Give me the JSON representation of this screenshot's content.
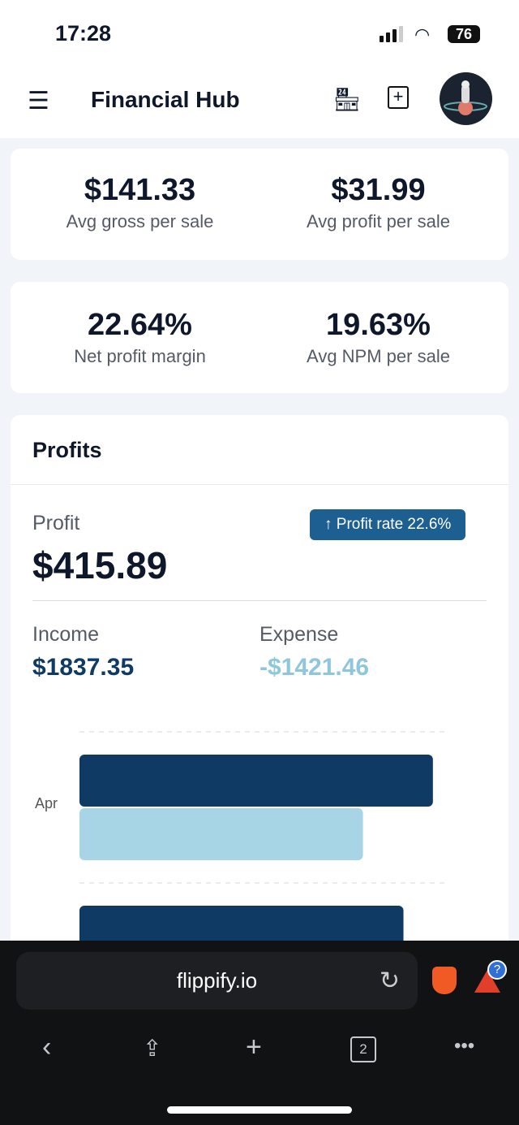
{
  "status_bar": {
    "time": "17:28",
    "battery": "76"
  },
  "header": {
    "title": "Financial Hub",
    "icons": [
      "menu-icon",
      "store-add-icon",
      "book-add-icon",
      "avatar-astronaut"
    ]
  },
  "stats": [
    {
      "value": "$141.33",
      "label": "Avg gross per sale"
    },
    {
      "value": "$31.99",
      "label": "Avg profit per sale"
    },
    {
      "value": "22.64%",
      "label": "Net profit margin"
    },
    {
      "value": "19.63%",
      "label": "Avg NPM per sale"
    }
  ],
  "profits": {
    "title": "Profits",
    "profit_label": "Profit",
    "profit_value": "$415.89",
    "badge": "↑ Profit rate 22.6%",
    "income_label": "Income",
    "income_value": "$1837.35",
    "expense_label": "Expense",
    "expense_value": "-$1421.46",
    "colors": {
      "income": "#0f3a64",
      "expense": "#a8d5e5"
    }
  },
  "chart_data": {
    "type": "bar",
    "orientation": "horizontal",
    "categories": [
      "Apr",
      ""
    ],
    "series": [
      {
        "values": [
          96,
          88
        ]
      },
      {
        "values": [
          77,
          null
        ]
      }
    ],
    "note_units": "relative bar length, percent of axis",
    "grid": true
  },
  "browser": {
    "url": "flippify.io",
    "tab_count": "2"
  }
}
